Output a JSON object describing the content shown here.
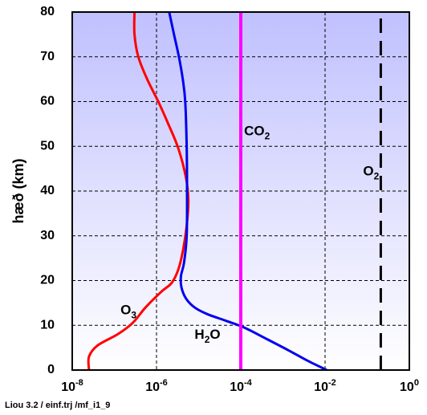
{
  "chart_data": {
    "type": "line",
    "ylabel": "hæð (km)",
    "xscale": "log",
    "xlim": [
      1e-08,
      1
    ],
    "ylim": [
      0,
      80
    ],
    "grid": true,
    "background_gradient": {
      "top": "#c0c0ff",
      "bottom": "#ffffff"
    },
    "x_ticks": [
      {
        "base": "10",
        "exp": "-8",
        "value": 1e-08
      },
      {
        "base": "10",
        "exp": "-6",
        "value": 1e-06
      },
      {
        "base": "10",
        "exp": "-4",
        "value": 0.0001
      },
      {
        "base": "10",
        "exp": "-2",
        "value": 0.01
      },
      {
        "base": "10",
        "exp": "0",
        "value": 1
      }
    ],
    "y_ticks": [
      {
        "label": "0",
        "value": 0
      },
      {
        "label": "10",
        "value": 10
      },
      {
        "label": "20",
        "value": 20
      },
      {
        "label": "30",
        "value": 30
      },
      {
        "label": "40",
        "value": 40
      },
      {
        "label": "50",
        "value": 50
      },
      {
        "label": "60",
        "value": 60
      },
      {
        "label": "70",
        "value": 70
      },
      {
        "label": "80",
        "value": 80
      }
    ],
    "series": [
      {
        "key": "o3",
        "label_main": "O",
        "label_sub": "3",
        "color": "#ff0000",
        "dash": "none",
        "label_pos": {
          "x": 1.4e-07,
          "y": 12.5
        },
        "points": [
          {
            "x": 2.5e-08,
            "y": 0
          },
          {
            "x": 2.5e-08,
            "y": 3
          },
          {
            "x": 4e-08,
            "y": 5.5
          },
          {
            "x": 1.2e-07,
            "y": 8
          },
          {
            "x": 2.7e-07,
            "y": 10.5
          },
          {
            "x": 5.5e-07,
            "y": 14
          },
          {
            "x": 1.3e-06,
            "y": 17.5
          },
          {
            "x": 2.3e-06,
            "y": 19.5
          },
          {
            "x": 3.3e-06,
            "y": 22.5
          },
          {
            "x": 4.3e-06,
            "y": 27
          },
          {
            "x": 5.3e-06,
            "y": 33
          },
          {
            "x": 5.7e-06,
            "y": 38
          },
          {
            "x": 5e-06,
            "y": 43
          },
          {
            "x": 3.3e-06,
            "y": 49.5
          },
          {
            "x": 1.9e-06,
            "y": 55
          },
          {
            "x": 1.1e-06,
            "y": 60
          },
          {
            "x": 6e-07,
            "y": 65
          },
          {
            "x": 3.7e-07,
            "y": 70
          },
          {
            "x": 3e-07,
            "y": 75
          },
          {
            "x": 3e-07,
            "y": 80
          }
        ]
      },
      {
        "key": "h2o",
        "label_main": "H",
        "label_sub": "2",
        "label_tail": "O",
        "color": "#0000ee",
        "dash": "none",
        "label_pos": {
          "x": 8e-06,
          "y": 7
        },
        "points": [
          {
            "x": 0.011,
            "y": 0
          },
          {
            "x": 0.004,
            "y": 2
          },
          {
            "x": 0.0013,
            "y": 4.5
          },
          {
            "x": 0.0004,
            "y": 7
          },
          {
            "x": 0.00012,
            "y": 9.5
          },
          {
            "x": 4.5e-05,
            "y": 11
          },
          {
            "x": 1.6e-05,
            "y": 12.5
          },
          {
            "x": 8e-06,
            "y": 14
          },
          {
            "x": 5e-06,
            "y": 16
          },
          {
            "x": 3.9e-06,
            "y": 18.5
          },
          {
            "x": 3.8e-06,
            "y": 21
          },
          {
            "x": 4.5e-06,
            "y": 24
          },
          {
            "x": 5.2e-06,
            "y": 30
          },
          {
            "x": 5.3e-06,
            "y": 40
          },
          {
            "x": 5.2e-06,
            "y": 50
          },
          {
            "x": 4.8e-06,
            "y": 60
          },
          {
            "x": 4.2e-06,
            "y": 65
          },
          {
            "x": 3.4e-06,
            "y": 70
          },
          {
            "x": 2.6e-06,
            "y": 75
          },
          {
            "x": 2e-06,
            "y": 80
          }
        ]
      },
      {
        "key": "co2",
        "label_main": "CO",
        "label_sub": "2",
        "color": "#ff00ff",
        "dash": "none",
        "label_pos": {
          "x": 0.00012,
          "y": 52.5
        },
        "points": [
          {
            "x": 0.0001,
            "y": 0
          },
          {
            "x": 0.0001,
            "y": 80
          }
        ]
      },
      {
        "key": "o2",
        "label_main": "O",
        "label_sub": "2",
        "color": "#000000",
        "dash": "18,10",
        "label_pos": {
          "x": 0.08,
          "y": 43.5
        },
        "points": [
          {
            "x": 0.21,
            "y": 0
          },
          {
            "x": 0.21,
            "y": 80
          }
        ]
      }
    ]
  },
  "credit": "Liou 3.2 / einf.trj /mf_i1_9"
}
